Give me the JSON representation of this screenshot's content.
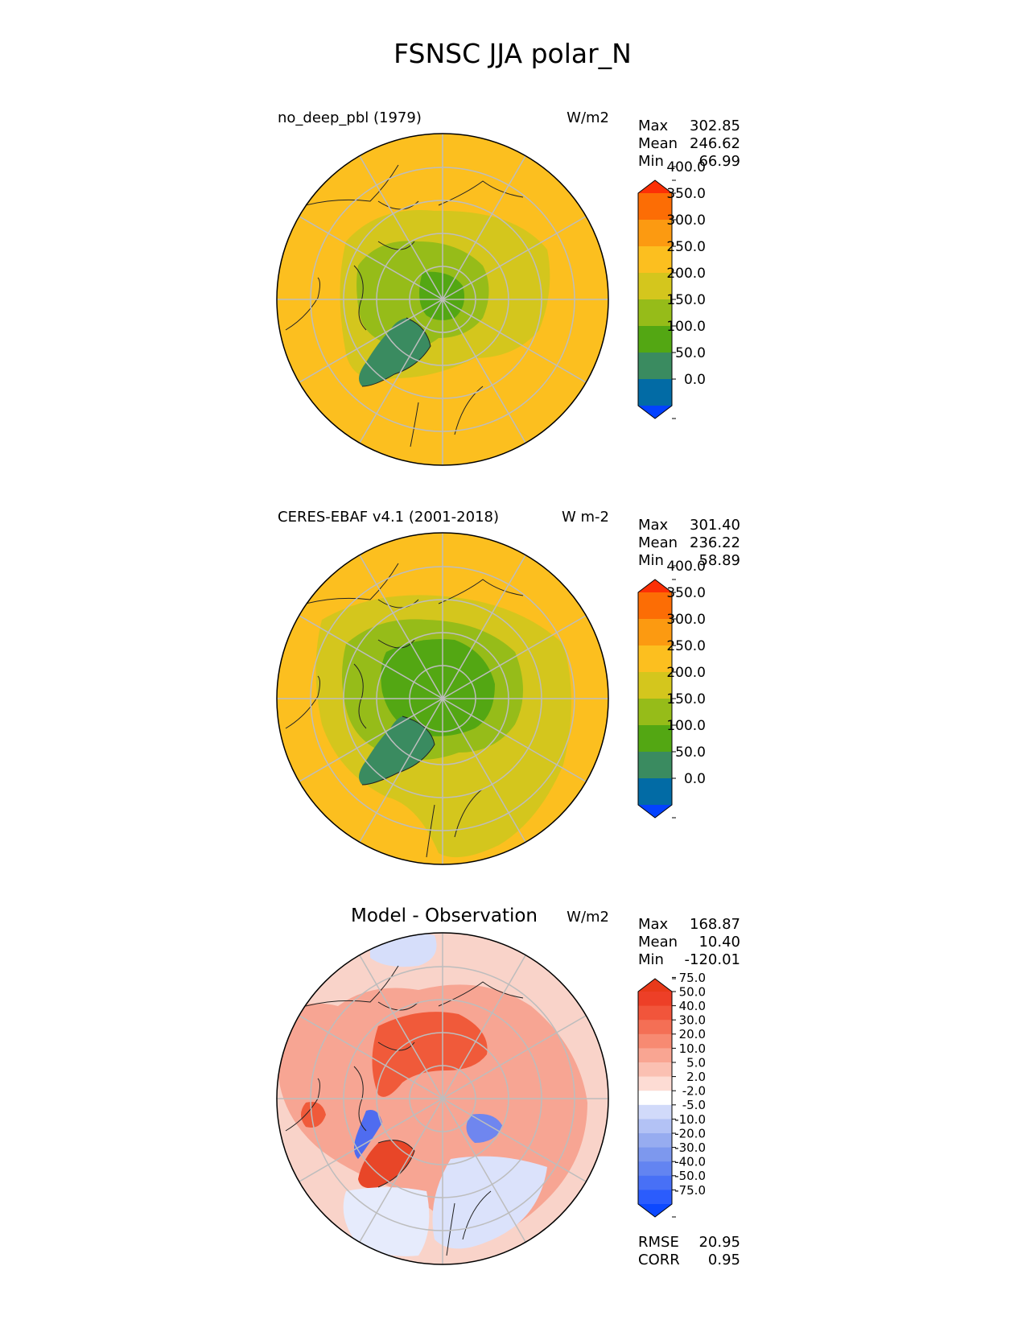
{
  "figure": {
    "title": "FSNSC JJA polar_N"
  },
  "panels": [
    {
      "id": "model",
      "left_title": "no_deep_pbl (1979)",
      "center_title": "",
      "units": "W/m2",
      "stats": [
        {
          "label": "Max",
          "value": "302.85"
        },
        {
          "label": "Mean",
          "value": "246.62"
        },
        {
          "label": "Min",
          "value": "66.99"
        }
      ],
      "map_regions": [
        {
          "name": "outer-band",
          "color": "#fcbf1f"
        },
        {
          "name": "ring-250",
          "color": "#d4c61d"
        },
        {
          "name": "ring-200",
          "color": "#96bc19"
        },
        {
          "name": "core-150",
          "color": "#53a713"
        },
        {
          "name": "greenland-100",
          "color": "#3a8b60"
        }
      ]
    },
    {
      "id": "obs",
      "left_title": "CERES-EBAF v4.1 (2001-2018)",
      "center_title": "",
      "units": "W m-2",
      "stats": [
        {
          "label": "Max",
          "value": "301.40"
        },
        {
          "label": "Mean",
          "value": "236.22"
        },
        {
          "label": "Min",
          "value": "58.89"
        }
      ],
      "map_regions": [
        {
          "name": "outer-band",
          "color": "#fcbf1f"
        },
        {
          "name": "ring-250",
          "color": "#d4c61d"
        },
        {
          "name": "ring-200",
          "color": "#96bc19"
        },
        {
          "name": "core-150",
          "color": "#53a713"
        },
        {
          "name": "greenland-100",
          "color": "#3a8b60"
        }
      ]
    },
    {
      "id": "diff",
      "left_title": "",
      "center_title": "Model - Observation",
      "units": "W/m2",
      "stats": [
        {
          "label": "Max",
          "value": "168.87"
        },
        {
          "label": "Mean",
          "value": "10.40"
        },
        {
          "label": "Min",
          "value": "-120.01"
        }
      ],
      "bottom_stats": [
        {
          "label": "RMSE",
          "value": "20.95"
        },
        {
          "label": "CORR",
          "value": "0.95"
        }
      ],
      "map_regions": [
        {
          "name": "positive-light",
          "color": "#f7a593"
        },
        {
          "name": "positive-strong",
          "color": "#f05a3a"
        },
        {
          "name": "negative-light",
          "color": "#d6defa"
        },
        {
          "name": "negative-strong",
          "color": "#6f86ef"
        }
      ]
    }
  ],
  "chart_data": {
    "type": "heatmap",
    "projection": "north polar stereographic",
    "variable": "FSNSC",
    "season": "JJA",
    "region": "polar_N",
    "colorbars": [
      {
        "panel": "model",
        "tick_labels": [
          "0.0",
          "50.0",
          "100.0",
          "150.0",
          "200.0",
          "250.0",
          "300.0",
          "350.0",
          "400.0"
        ],
        "colors": [
          "#0342ff",
          "#026ba5",
          "#3a8b60",
          "#53a713",
          "#96bc19",
          "#d4c61d",
          "#fcbf1f",
          "#fc9a11",
          "#fc6d05",
          "#fc3006"
        ],
        "extend": "both"
      },
      {
        "panel": "obs",
        "tick_labels": [
          "0.0",
          "50.0",
          "100.0",
          "150.0",
          "200.0",
          "250.0",
          "300.0",
          "350.0",
          "400.0"
        ],
        "colors": [
          "#0342ff",
          "#026ba5",
          "#3a8b60",
          "#53a713",
          "#96bc19",
          "#d4c61d",
          "#fcbf1f",
          "#fc9a11",
          "#fc6d05",
          "#fc3006"
        ],
        "extend": "both"
      },
      {
        "panel": "diff",
        "tick_labels": [
          "-75.0",
          "-50.0",
          "-40.0",
          "-30.0",
          "-20.0",
          "-10.0",
          "-5.0",
          "-2.0",
          "2.0",
          "5.0",
          "10.0",
          "20.0",
          "30.0",
          "40.0",
          "50.0",
          "75.0"
        ],
        "colors": [
          "#0c48ff",
          "#2b5cfd",
          "#4870f6",
          "#6384f1",
          "#7d98ee",
          "#97acf0",
          "#b3c2f5",
          "#d1dafa",
          "#ffffff",
          "#fddcd4",
          "#fbc0b2",
          "#f9a592",
          "#f78a72",
          "#f46f55",
          "#f1553b",
          "#ed3f27",
          "#e83a1a"
        ],
        "extend": "both"
      }
    ]
  }
}
